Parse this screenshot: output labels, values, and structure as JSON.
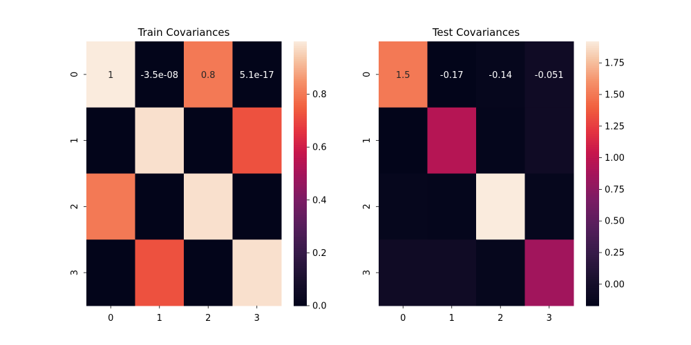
{
  "chart_data": [
    {
      "type": "heatmap",
      "title": "Train Covariances",
      "x_tick_labels": [
        "0",
        "1",
        "2",
        "3"
      ],
      "y_tick_labels": [
        "0",
        "1",
        "2",
        "3"
      ],
      "values": [
        [
          1.0,
          -3.5e-08,
          0.8,
          5.1e-17
        ],
        [
          -3.5e-08,
          0.98,
          0.0,
          0.72
        ],
        [
          0.8,
          0.0,
          0.98,
          0.0
        ],
        [
          5.1e-17,
          0.72,
          0.0,
          0.98
        ]
      ],
      "cell_labels": [
        [
          "1",
          "-3.5e-08",
          "0.8",
          "5.1e-17"
        ],
        [
          "",
          "",
          "",
          ""
        ],
        [
          "",
          "",
          "",
          ""
        ],
        [
          "",
          "",
          "",
          ""
        ]
      ],
      "color_range": [
        0.0,
        1.0
      ],
      "colorbar_ticks": [
        "0.0",
        "0.2",
        "0.4",
        "0.6",
        "0.8"
      ],
      "colorbar_tick_values": [
        0.0,
        0.2,
        0.4,
        0.6,
        0.8
      ],
      "colormap": "rocket"
    },
    {
      "type": "heatmap",
      "title": "Test Covariances",
      "x_tick_labels": [
        "0",
        "1",
        "2",
        "3"
      ],
      "y_tick_labels": [
        "0",
        "1",
        "2",
        "3"
      ],
      "values": [
        [
          1.5,
          -0.17,
          -0.14,
          -0.051
        ],
        [
          -0.17,
          0.95,
          -0.15,
          -0.05
        ],
        [
          -0.14,
          -0.15,
          1.92,
          -0.14
        ],
        [
          -0.051,
          -0.05,
          -0.14,
          0.85
        ]
      ],
      "cell_labels": [
        [
          "1.5",
          "-0.17",
          "-0.14",
          "-0.051"
        ],
        [
          "",
          "",
          "",
          ""
        ],
        [
          "",
          "",
          "",
          ""
        ],
        [
          "",
          "",
          "",
          ""
        ]
      ],
      "color_range": [
        -0.17,
        1.92
      ],
      "colorbar_ticks": [
        "0.00",
        "0.25",
        "0.50",
        "0.75",
        "1.00",
        "1.25",
        "1.50",
        "1.75"
      ],
      "colorbar_tick_values": [
        0.0,
        0.25,
        0.5,
        0.75,
        1.0,
        1.25,
        1.5,
        1.75
      ],
      "colormap": "rocket"
    }
  ]
}
